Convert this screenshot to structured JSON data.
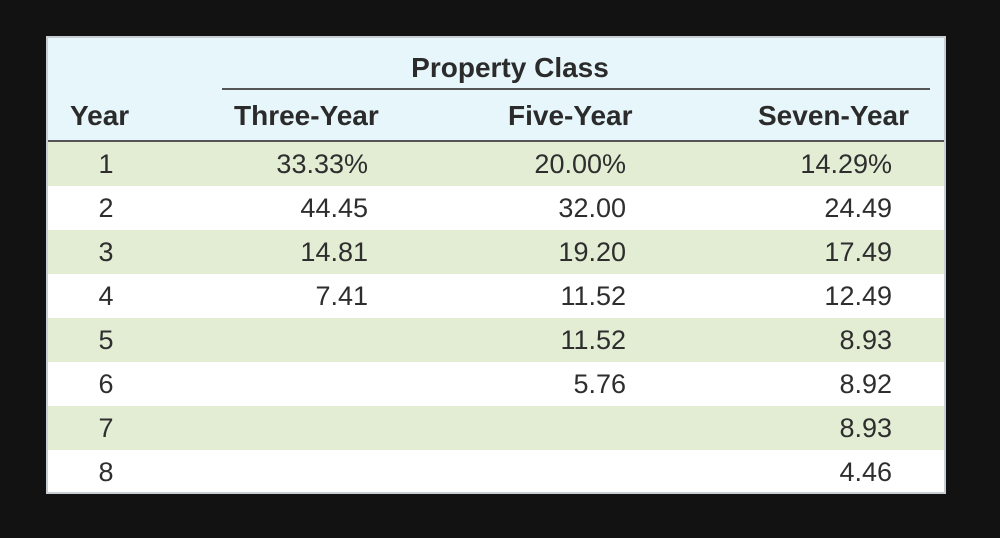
{
  "table": {
    "group_title": "Property Class",
    "headers": {
      "year": "Year",
      "three": "Three-Year",
      "five": "Five-Year",
      "seven": "Seven-Year"
    },
    "rows": [
      {
        "year": "1",
        "three": "33.33%",
        "five": "20.00%",
        "seven": "14.29%"
      },
      {
        "year": "2",
        "three": "44.45",
        "five": "32.00",
        "seven": "24.49"
      },
      {
        "year": "3",
        "three": "14.81",
        "five": "19.20",
        "seven": "17.49"
      },
      {
        "year": "4",
        "three": "7.41",
        "five": "11.52",
        "seven": "12.49"
      },
      {
        "year": "5",
        "three": "",
        "five": "11.52",
        "seven": "8.93"
      },
      {
        "year": "6",
        "three": "",
        "five": "5.76",
        "seven": "8.92"
      },
      {
        "year": "7",
        "three": "",
        "five": "",
        "seven": "8.93"
      },
      {
        "year": "8",
        "three": "",
        "five": "",
        "seven": "4.46"
      }
    ],
    "colors": {
      "header_bg": "#e6f6fb",
      "shaded_row_bg": "#e2edd4",
      "page_bg": "#121212"
    }
  }
}
